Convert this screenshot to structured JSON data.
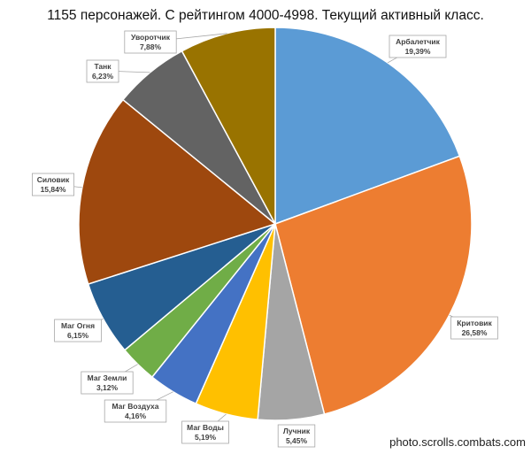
{
  "chart_data": {
    "type": "pie",
    "title": "1155 персонажей. С  рейтингом 4000-4998. Текущий активный класс.",
    "start_angle_deg": 0,
    "direction": "clockwise",
    "slices": [
      {
        "label": "Арбалетчик",
        "value": 19.39,
        "value_text": "19,39%",
        "color": "#5b9bd5"
      },
      {
        "label": "Критовик",
        "value": 26.58,
        "value_text": "26,58%",
        "color": "#ed7d31"
      },
      {
        "label": "Лучник",
        "value": 5.45,
        "value_text": "5,45%",
        "color": "#a5a5a5"
      },
      {
        "label": "Маг Воды",
        "value": 5.19,
        "value_text": "5,19%",
        "color": "#ffc000"
      },
      {
        "label": "Маг Воздуха",
        "value": 4.16,
        "value_text": "4,16%",
        "color": "#4472c4"
      },
      {
        "label": "Маг Земли",
        "value": 3.12,
        "value_text": "3,12%",
        "color": "#70ad47"
      },
      {
        "label": "Маг Огня",
        "value": 6.15,
        "value_text": "6,15%",
        "color": "#255e91"
      },
      {
        "label": "Силовик",
        "value": 15.84,
        "value_text": "15,84%",
        "color": "#9e480e"
      },
      {
        "label": "Танк",
        "value": 6.23,
        "value_text": "6,23%",
        "color": "#636363"
      },
      {
        "label": "Уворотчик",
        "value": 7.88,
        "value_text": "7,88%",
        "color": "#997300"
      }
    ]
  },
  "watermark": "photo.scrolls.combats.com"
}
